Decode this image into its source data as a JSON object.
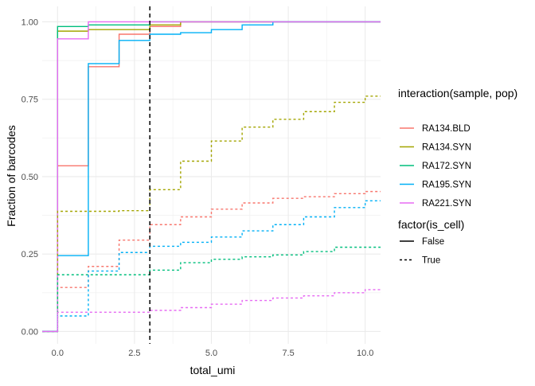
{
  "chart_data": {
    "type": "line",
    "xlabel": "total_umi",
    "ylabel": "Fraction of barcodes",
    "xlim": [
      -0.5,
      10.5
    ],
    "ylim": [
      -0.04,
      1.05
    ],
    "x_ticks": [
      0.0,
      2.5,
      5.0,
      7.5,
      10.0
    ],
    "x_tick_labels": [
      "0.0",
      "2.5",
      "5.0",
      "7.5",
      "10.0"
    ],
    "y_ticks": [
      0.0,
      0.25,
      0.5,
      0.75,
      1.0
    ],
    "y_tick_labels": [
      "0.00",
      "0.25",
      "0.50",
      "0.75",
      "1.00"
    ],
    "grid": true,
    "vline": {
      "x": 3,
      "style": "dashed",
      "color": "#000000"
    },
    "legend_color": {
      "title": "interaction(sample, pop)",
      "entries": [
        {
          "label": "RA134.BLD",
          "color": "#F8766D"
        },
        {
          "label": "RA134.SYN",
          "color": "#A3A500"
        },
        {
          "label": "RA172.SYN",
          "color": "#00BF7D"
        },
        {
          "label": "RA195.SYN",
          "color": "#00B0F6"
        },
        {
          "label": "RA221.SYN",
          "color": "#E76BF3"
        }
      ]
    },
    "legend_linetype": {
      "title": "factor(is_cell)",
      "entries": [
        {
          "label": "False",
          "linetype": "solid"
        },
        {
          "label": "True",
          "linetype": "dashed"
        }
      ]
    },
    "series": [
      {
        "sample": "RA134.BLD",
        "is_cell": "False",
        "color": "#F8766D",
        "linetype": "solid",
        "x": [
          -0.5,
          0,
          1,
          2,
          3,
          4,
          10.5
        ],
        "y": [
          0.0,
          0.535,
          0.855,
          0.96,
          0.985,
          1.0,
          1.0
        ]
      },
      {
        "sample": "RA134.SYN",
        "is_cell": "False",
        "color": "#A3A500",
        "linetype": "solid",
        "x": [
          -0.5,
          0,
          1,
          3,
          4,
          10.5
        ],
        "y": [
          0.0,
          0.97,
          0.975,
          0.99,
          1.0,
          1.0
        ]
      },
      {
        "sample": "RA172.SYN",
        "is_cell": "False",
        "color": "#00BF7D",
        "linetype": "solid",
        "x": [
          -0.5,
          0,
          1,
          3,
          10.5
        ],
        "y": [
          0.0,
          0.985,
          0.99,
          1.0,
          1.0
        ]
      },
      {
        "sample": "RA195.SYN",
        "is_cell": "False",
        "color": "#00B0F6",
        "linetype": "solid",
        "x": [
          -0.5,
          0,
          1,
          2,
          3,
          4,
          5,
          6,
          7,
          10.5
        ],
        "y": [
          0.0,
          0.245,
          0.865,
          0.94,
          0.96,
          0.965,
          0.975,
          0.99,
          1.0,
          1.0
        ]
      },
      {
        "sample": "RA221.SYN",
        "is_cell": "False",
        "color": "#E76BF3",
        "linetype": "solid",
        "x": [
          -0.5,
          0,
          1,
          10.5
        ],
        "y": [
          0.0,
          0.945,
          1.0,
          1.0
        ]
      },
      {
        "sample": "RA134.BLD",
        "is_cell": "True",
        "color": "#F8766D",
        "linetype": "dashed",
        "x": [
          -0.5,
          0,
          1,
          2,
          3,
          4,
          5,
          6,
          7,
          8,
          9,
          10,
          10.5
        ],
        "y": [
          0.0,
          0.142,
          0.21,
          0.295,
          0.345,
          0.37,
          0.395,
          0.415,
          0.43,
          0.435,
          0.445,
          0.452,
          0.452
        ]
      },
      {
        "sample": "RA134.SYN",
        "is_cell": "True",
        "color": "#A3A500",
        "linetype": "dashed",
        "x": [
          -0.5,
          0,
          1,
          2,
          3,
          4,
          5,
          6,
          7,
          8,
          9,
          10,
          10.5
        ],
        "y": [
          0.0,
          0.388,
          0.388,
          0.39,
          0.458,
          0.55,
          0.615,
          0.66,
          0.685,
          0.71,
          0.74,
          0.76,
          0.76
        ]
      },
      {
        "sample": "RA172.SYN",
        "is_cell": "True",
        "color": "#00BF7D",
        "linetype": "dashed",
        "x": [
          -0.5,
          0,
          1,
          2,
          3,
          4,
          5,
          6,
          7,
          8,
          9,
          10,
          10.5
        ],
        "y": [
          0.0,
          0.183,
          0.183,
          0.183,
          0.198,
          0.222,
          0.233,
          0.241,
          0.247,
          0.258,
          0.272,
          0.272,
          0.272
        ]
      },
      {
        "sample": "RA195.SYN",
        "is_cell": "True",
        "color": "#00B0F6",
        "linetype": "dashed",
        "x": [
          -0.5,
          0,
          1,
          2,
          3,
          4,
          5,
          6,
          7,
          8,
          9,
          10,
          10.5
        ],
        "y": [
          0.0,
          0.05,
          0.195,
          0.255,
          0.275,
          0.288,
          0.305,
          0.325,
          0.345,
          0.37,
          0.4,
          0.422,
          0.422
        ]
      },
      {
        "sample": "RA221.SYN",
        "is_cell": "True",
        "color": "#E76BF3",
        "linetype": "dashed",
        "x": [
          -0.5,
          0,
          1,
          2,
          3,
          4,
          5,
          6,
          7,
          8,
          9,
          10,
          10.5
        ],
        "y": [
          0.0,
          0.062,
          0.062,
          0.062,
          0.068,
          0.077,
          0.088,
          0.1,
          0.108,
          0.115,
          0.125,
          0.135,
          0.135
        ]
      }
    ]
  }
}
